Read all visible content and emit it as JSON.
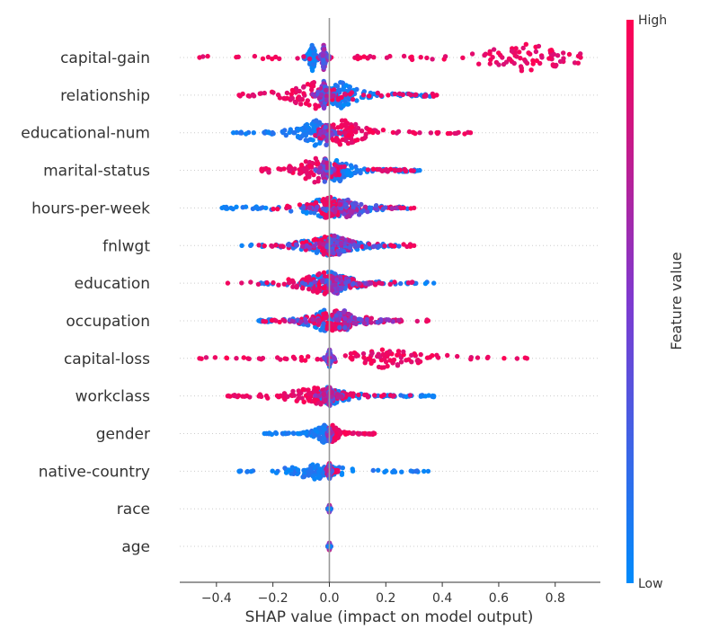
{
  "chart_data": {
    "type": "scatter",
    "subtype": "shap-beeswarm",
    "xlabel": "SHAP value (impact on model output)",
    "xlim": [
      -0.53,
      0.96
    ],
    "xticks": [
      -0.4,
      -0.2,
      0.0,
      0.2,
      0.4,
      0.6,
      0.8
    ],
    "xtick_labels": [
      "−0.4",
      "−0.2",
      "0.0",
      "0.2",
      "0.4",
      "0.6",
      "0.8"
    ],
    "zero_line": 0.0,
    "grid": false,
    "colorbar": {
      "title": "Feature value",
      "high_label": "High",
      "low_label": "Low",
      "low_color": "#008bfb",
      "mid_color": "#7e3ad0",
      "high_color": "#ff0052",
      "placement": "right"
    },
    "features": [
      {
        "name": "capital-gain",
        "low_range": [
          -0.09,
          -0.02
        ],
        "high_range": [
          -0.46,
          0.89
        ],
        "low_mode": -0.06,
        "high_mode": 0.7,
        "mixed_range": [
          -0.04,
          0.0
        ],
        "peak_density": 1.0
      },
      {
        "name": "relationship",
        "low_range": [
          0.0,
          0.37
        ],
        "high_range": [
          -0.32,
          0.38
        ],
        "low_mode": 0.04,
        "high_mode": -0.05,
        "mixed_range": [
          -0.06,
          0.02
        ],
        "peak_density": 1.0
      },
      {
        "name": "educational-num",
        "low_range": [
          -0.34,
          0.05
        ],
        "high_range": [
          -0.05,
          0.5
        ],
        "low_mode": -0.05,
        "high_mode": 0.05,
        "mixed_range": [
          -0.04,
          0.02
        ],
        "peak_density": 0.95
      },
      {
        "name": "marital-status",
        "low_range": [
          0.0,
          0.32
        ],
        "high_range": [
          -0.24,
          0.3
        ],
        "low_mode": 0.03,
        "high_mode": -0.05,
        "mixed_range": [
          -0.05,
          0.02
        ],
        "peak_density": 0.9
      },
      {
        "name": "hours-per-week",
        "low_range": [
          -0.38,
          0.28
        ],
        "high_range": [
          -0.2,
          0.3
        ],
        "low_mode": 0.0,
        "high_mode": 0.0,
        "mixed_range": [
          -0.1,
          0.25
        ],
        "peak_density": 0.8
      },
      {
        "name": "fnlwgt",
        "low_range": [
          -0.31,
          0.27
        ],
        "high_range": [
          -0.25,
          0.3
        ],
        "low_mode": 0.0,
        "high_mode": 0.0,
        "mixed_range": [
          -0.15,
          0.2
        ],
        "peak_density": 0.8
      },
      {
        "name": "education",
        "low_range": [
          -0.26,
          0.37
        ],
        "high_range": [
          -0.36,
          0.3
        ],
        "low_mode": 0.0,
        "high_mode": -0.02,
        "mixed_range": [
          -0.1,
          0.15
        ],
        "peak_density": 0.8
      },
      {
        "name": "occupation",
        "low_range": [
          -0.25,
          0.2
        ],
        "high_range": [
          -0.25,
          0.35
        ],
        "low_mode": -0.02,
        "high_mode": 0.02,
        "mixed_range": [
          -0.15,
          0.25
        ],
        "peak_density": 0.75
      },
      {
        "name": "capital-loss",
        "low_range": [
          -0.01,
          0.02
        ],
        "high_range": [
          -0.46,
          0.7
        ],
        "low_mode": 0.0,
        "high_mode": 0.2,
        "mixed_range": [
          -0.02,
          0.02
        ],
        "peak_density": 0.7
      },
      {
        "name": "workclass",
        "low_range": [
          -0.05,
          0.37
        ],
        "high_range": [
          -0.36,
          0.3
        ],
        "low_mode": 0.0,
        "high_mode": -0.05,
        "mixed_range": [
          -0.05,
          0.05
        ],
        "peak_density": 0.7
      },
      {
        "name": "gender",
        "low_range": [
          -0.23,
          0.0
        ],
        "high_range": [
          0.0,
          0.16
        ],
        "low_mode": -0.02,
        "high_mode": 0.01,
        "mixed_range": [
          -0.01,
          0.01
        ],
        "peak_density": 0.65
      },
      {
        "name": "native-country",
        "low_range": [
          -0.32,
          0.35
        ],
        "high_range": [
          -0.01,
          0.03
        ],
        "low_mode": -0.05,
        "high_mode": 0.0,
        "mixed_range": [
          -0.01,
          0.01
        ],
        "peak_density": 0.6
      },
      {
        "name": "race",
        "low_range": [
          -0.005,
          0.005
        ],
        "high_range": [
          -0.005,
          0.005
        ],
        "low_mode": 0.0,
        "high_mode": 0.0,
        "mixed_range": [
          -0.005,
          0.005
        ],
        "peak_density": 0.3
      },
      {
        "name": "age",
        "low_range": [
          -0.005,
          0.005
        ],
        "high_range": [
          -0.005,
          0.005
        ],
        "low_mode": 0.0,
        "high_mode": 0.0,
        "mixed_range": [
          -0.005,
          0.005
        ],
        "peak_density": 0.3
      }
    ]
  }
}
